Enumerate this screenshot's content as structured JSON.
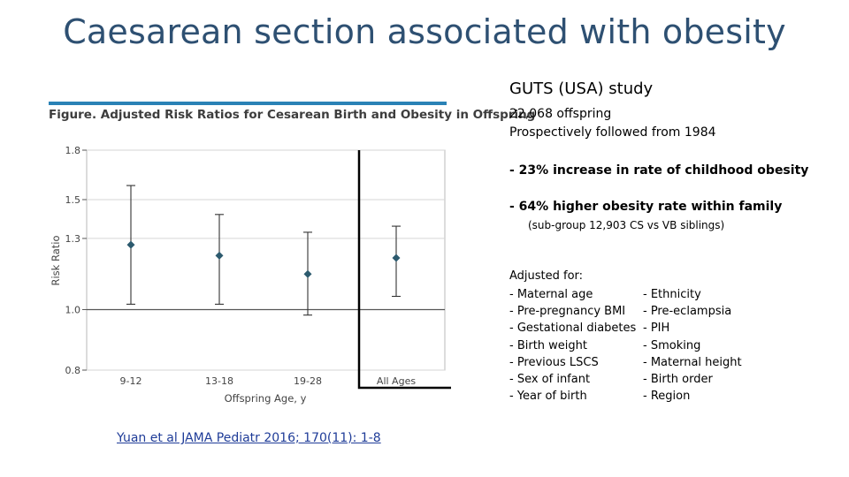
{
  "title": "Caesarean section associated with obesity",
  "figure": {
    "caption": "Figure. Adjusted Risk Ratios for Cesarean Birth and Obesity in Offspring"
  },
  "chart_data": {
    "type": "scatter",
    "subtype": "point-with-error-bars",
    "title": "Adjusted Risk Ratios for Cesarean Birth and Obesity in Offspring",
    "xlabel": "Offspring Age, y",
    "ylabel": "Risk Ratio",
    "categories": [
      "9-12",
      "13-18",
      "19-28",
      "All Ages"
    ],
    "y_ticks": [
      0.8,
      1.0,
      1.3,
      1.5,
      1.8
    ],
    "y_scale": "log",
    "ylim": [
      0.8,
      1.8
    ],
    "reference_line": 1.0,
    "series": [
      {
        "name": "Adjusted risk ratio",
        "values": [
          1.27,
          1.22,
          1.14,
          1.21
        ],
        "lower": [
          1.02,
          1.02,
          0.98,
          1.05
        ],
        "upper": [
          1.58,
          1.42,
          1.33,
          1.36
        ]
      }
    ]
  },
  "study": {
    "title": "GUTS (USA) study",
    "line1": "22,068 offspring",
    "line2": "Prospectively followed from 1984",
    "bullet1": "-   23% increase in rate of childhood obesity",
    "bullet2": "-   64% higher obesity rate within family",
    "bullet2_note": "(sub-group 12,903 CS vs VB siblings)"
  },
  "adjusted": {
    "heading": "Adjusted for:",
    "left": [
      "- Maternal age",
      "- Pre-pregnancy BMI",
      "- Gestational diabetes",
      "- Birth weight",
      "- Previous LSCS",
      "- Sex of infant",
      "- Year of birth"
    ],
    "right": [
      "- Ethnicity",
      "- Pre-eclampsia",
      "- PIH",
      "- Smoking",
      "- Maternal height",
      "- Birth order",
      "- Region"
    ]
  },
  "citation": "Yuan et al JAMA Pediatr 2016; 170(11): 1-8",
  "colors": {
    "title": "#2e5072",
    "rule": "#2a82b6",
    "marker": "#2c5a6e",
    "citation": "#1f3c98"
  }
}
